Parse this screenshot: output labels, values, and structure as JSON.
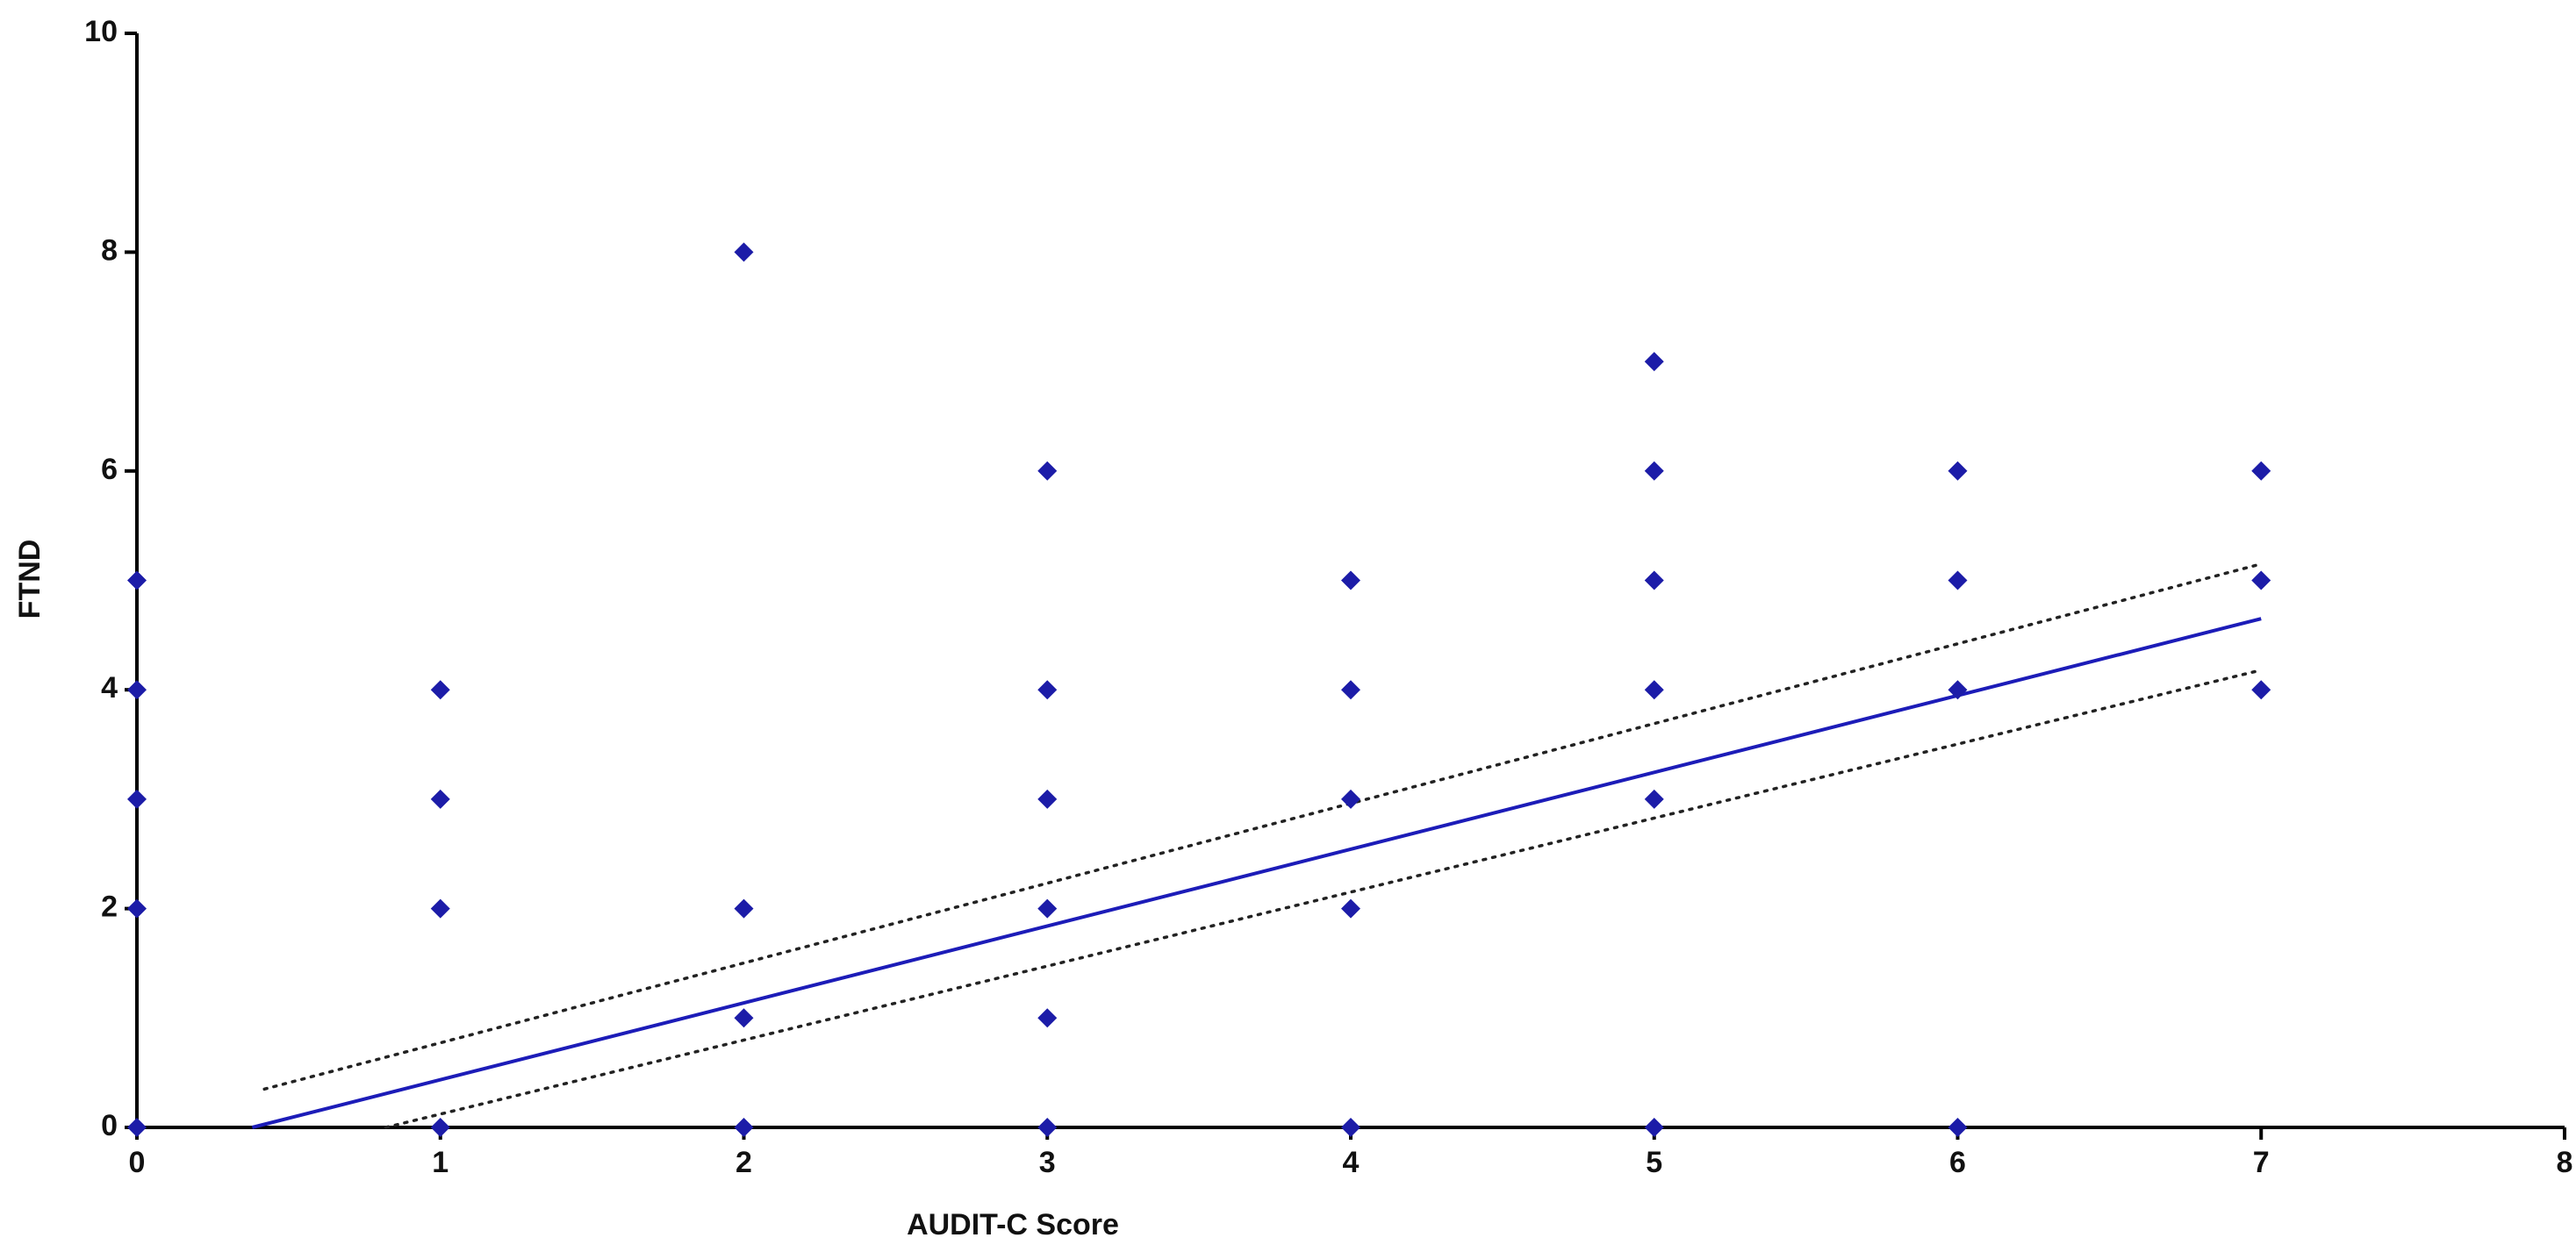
{
  "chart_data": {
    "type": "scatter",
    "xlabel": "AUDIT-C Score",
    "ylabel": "FTND",
    "x": [
      0,
      0,
      0,
      0,
      0,
      1,
      1,
      1,
      1,
      2,
      2,
      2,
      2,
      3,
      3,
      3,
      3,
      3,
      3,
      4,
      4,
      4,
      4,
      4,
      5,
      5,
      5,
      5,
      5,
      5,
      6,
      6,
      6,
      6,
      7,
      7,
      7
    ],
    "y": [
      0,
      2,
      3,
      4,
      5,
      0,
      2,
      3,
      4,
      0,
      1,
      2,
      8,
      0,
      1,
      2,
      3,
      4,
      6,
      0,
      2,
      3,
      4,
      5,
      0,
      3,
      4,
      5,
      6,
      7,
      0,
      4,
      5,
      6,
      4,
      5,
      6
    ],
    "color": "#1c1ca8",
    "lines": [
      {
        "x": [
          0.38,
          7
        ],
        "y": [
          0,
          4.65
        ],
        "color": "#1c1cb8",
        "style": "solid"
      },
      {
        "x": [
          0.42,
          7
        ],
        "y": [
          0.35,
          5.15
        ],
        "color": "#222222",
        "style": "dotted"
      },
      {
        "x": [
          0.82,
          7
        ],
        "y": [
          0,
          4.18
        ],
        "color": "#222222",
        "style": "dotted"
      }
    ],
    "xlim": [
      0,
      8
    ],
    "xticks": [
      0,
      1,
      2,
      3,
      4,
      5,
      6,
      7,
      8
    ],
    "ylim": [
      0,
      10
    ],
    "yticks": [
      0,
      2,
      4,
      6,
      8,
      10
    ]
  }
}
